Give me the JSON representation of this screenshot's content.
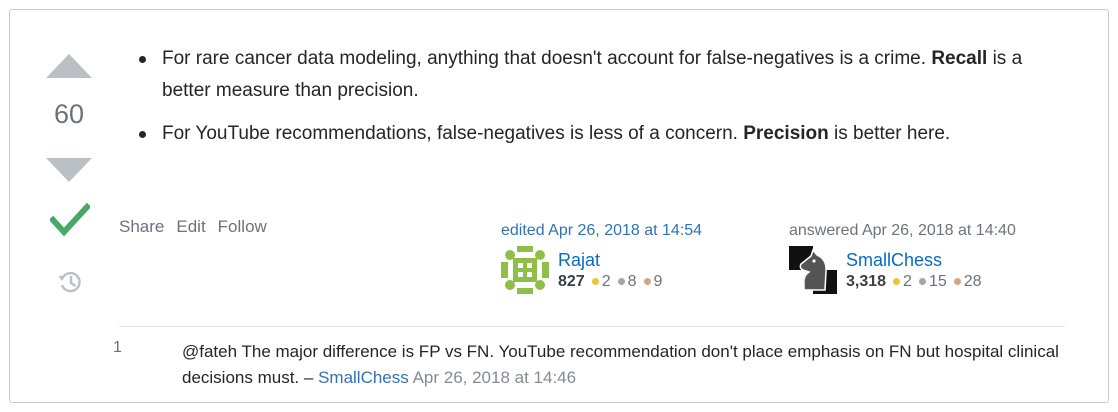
{
  "vote": {
    "count": "60"
  },
  "post": {
    "items": [
      {
        "text": "For rare cancer data modeling, anything that doesn't account for false-negatives is a crime. ",
        "bold": "Recall",
        "after": " is a better measure than precision."
      },
      {
        "text": "For YouTube recommendations, false-negatives is less of a concern. ",
        "bold": "Precision",
        "after": " is better here."
      }
    ]
  },
  "menu": {
    "share": "Share",
    "edit": "Edit",
    "follow": "Follow"
  },
  "editor": {
    "action": "edited Apr 26, 2018 at 14:54",
    "name": "Rajat",
    "rep": "827",
    "gold": "2",
    "silver": "8",
    "bronze": "9"
  },
  "author": {
    "action": "answered Apr 26, 2018 at 14:40",
    "name": "SmallChess",
    "rep": "3,318",
    "gold": "2",
    "silver": "15",
    "bronze": "28"
  },
  "comment": {
    "score": "1",
    "text": "@fateh The major difference is FP vs FN. YouTube recommendation don't place emphasis on FN but hospital clinical decisions must. – ",
    "user": "SmallChess",
    "date": "Apr 26, 2018 at 14:46"
  },
  "colors": {
    "accepted": "#48a868",
    "link": "#0a6ac4",
    "vote_arrow": "#bbc0c4"
  },
  "icons": {
    "up": "triangle-up-icon",
    "down": "triangle-down-icon",
    "accepted": "checkmark-icon",
    "history": "history-icon"
  }
}
